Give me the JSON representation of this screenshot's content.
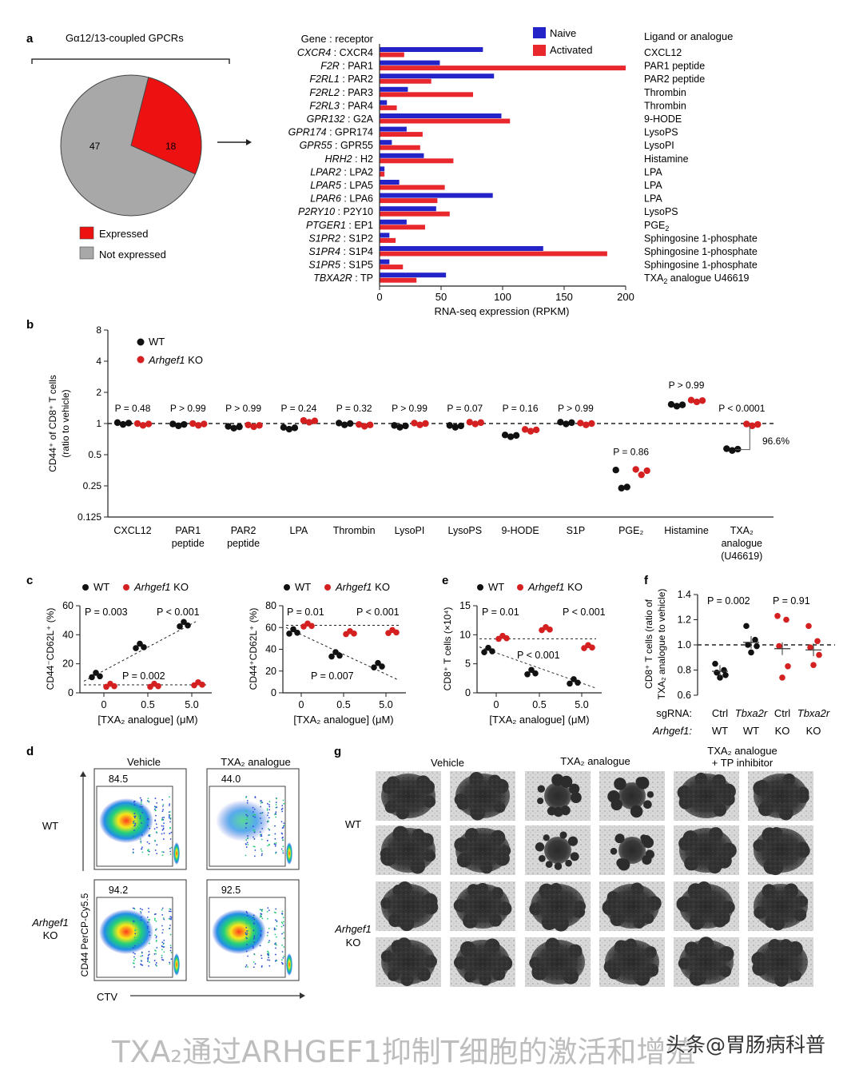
{
  "panel_a": {
    "label": "a",
    "pie_title": "Gα12/13-coupled GPCRs",
    "pie": {
      "not_expressed": 47,
      "expressed": 18
    },
    "legend": {
      "expressed": "Expressed",
      "not_expressed": "Not expressed"
    },
    "bar_header": "Gene : receptor",
    "ligand_header": "Ligand or analogue",
    "legend_naive": "Naive",
    "legend_activated": "Activated",
    "xlabel": "RNA-seq expression (RPKM)",
    "xticks": [
      "0",
      "50",
      "100",
      "150",
      "200"
    ],
    "colors": {
      "naive": "#2323c8",
      "activated": "#e8282d",
      "pie_expressed": "#ee1111",
      "pie_not": "#a8a8a8"
    }
  },
  "chart_data": [
    {
      "type": "bar",
      "title": "Gene : receptor expression",
      "xlabel": "RNA-seq expression (RPKM)",
      "xlim": [
        0,
        200
      ],
      "genes": [
        {
          "gene": "CXCR4",
          "receptor": "CXCR4",
          "ligand": "CXCL12",
          "naive": 84,
          "activated": 20
        },
        {
          "gene": "F2R",
          "receptor": "PAR1",
          "ligand": "PAR1 peptide",
          "naive": 49,
          "activated": 200
        },
        {
          "gene": "F2RL1",
          "receptor": "PAR2",
          "ligand": "PAR2 peptide",
          "naive": 93,
          "activated": 42
        },
        {
          "gene": "F2RL2",
          "receptor": "PAR3",
          "ligand": "Thrombin",
          "naive": 23,
          "activated": 76
        },
        {
          "gene": "F2RL3",
          "receptor": "PAR4",
          "ligand": "Thrombin",
          "naive": 6,
          "activated": 14
        },
        {
          "gene": "GPR132",
          "receptor": "G2A",
          "ligand": "9-HODE",
          "naive": 99,
          "activated": 106
        },
        {
          "gene": "GPR174",
          "receptor": "GPR174",
          "ligand": "LysoPS",
          "naive": 22,
          "activated": 35
        },
        {
          "gene": "GPR55",
          "receptor": "GPR55",
          "ligand": "LysoPI",
          "naive": 10,
          "activated": 33
        },
        {
          "gene": "HRH2",
          "receptor": "H2",
          "ligand": "Histamine",
          "naive": 36,
          "activated": 60
        },
        {
          "gene": "LPAR2",
          "receptor": "LPA2",
          "ligand": "LPA",
          "naive": 4,
          "activated": 4
        },
        {
          "gene": "LPAR5",
          "receptor": "LPA5",
          "ligand": "LPA",
          "naive": 16,
          "activated": 53
        },
        {
          "gene": "LPAR6",
          "receptor": "LPA6",
          "ligand": "LPA",
          "naive": 92,
          "activated": 47
        },
        {
          "gene": "P2RY10",
          "receptor": "P2Y10",
          "ligand": "LysoPS",
          "naive": 46,
          "activated": 57
        },
        {
          "gene": "PTGER1",
          "receptor": "EP1",
          "ligand": "PGE2",
          "naive": 22,
          "activated": 37
        },
        {
          "gene": "S1PR2",
          "receptor": "S1P2",
          "ligand": "Sphingosine 1-phosphate",
          "naive": 8,
          "activated": 13
        },
        {
          "gene": "S1PR4",
          "receptor": "S1P4",
          "ligand": "Sphingosine 1-phosphate",
          "naive": 133,
          "activated": 185
        },
        {
          "gene": "S1PR5",
          "receptor": "S1P5",
          "ligand": "Sphingosine 1-phosphate",
          "naive": 8,
          "activated": 19
        },
        {
          "gene": "TBXA2R",
          "receptor": "TP",
          "ligand": "TXA2 analogue U46619",
          "naive": 54,
          "activated": 30
        }
      ]
    },
    {
      "type": "scatter",
      "title": "CD44+ of CD8+ T cells",
      "ylabel": "CD44⁺ of CD8⁺ T cells (ratio to vehicle)",
      "yticks": [
        "8",
        "4",
        "2",
        "1",
        "0.5",
        "0.25",
        "0.125"
      ],
      "categories": [
        {
          "name": "CXCL12",
          "p": "P = 0.48",
          "wt": 1.0,
          "ko": 0.98
        },
        {
          "name": "PAR1 peptide",
          "p": "P > 0.99",
          "wt": 0.97,
          "ko": 0.98
        },
        {
          "name": "PAR2 peptide",
          "p": "P > 0.99",
          "wt": 0.92,
          "ko": 0.95
        },
        {
          "name": "LPA",
          "p": "P = 0.24",
          "wt": 0.9,
          "ko": 1.05
        },
        {
          "name": "Thrombin",
          "p": "P = 0.32",
          "wt": 0.99,
          "ko": 0.96
        },
        {
          "name": "LysoPI",
          "p": "P > 0.99",
          "wt": 0.94,
          "ko": 0.99
        },
        {
          "name": "LysoPS",
          "p": "P = 0.07",
          "wt": 0.94,
          "ko": 1.01
        },
        {
          "name": "9-HODE",
          "p": "P = 0.16",
          "wt": 0.76,
          "ko": 0.86
        },
        {
          "name": "S1P",
          "p": "P > 0.99",
          "wt": 1.01,
          "ko": 0.99
        },
        {
          "name": "PGE2",
          "p": "P = 0.86",
          "wt": 0.27,
          "ko": 0.34
        },
        {
          "name": "Histamine",
          "p": "P > 0.99",
          "wt": 1.5,
          "ko": 1.65
        },
        {
          "name": "TXA2 analogue (U46619)",
          "p": "P < 0.0001",
          "wt": 0.56,
          "ko": 0.97
        }
      ],
      "annotation": "96.6%"
    }
  ],
  "panel_b": {
    "label": "b",
    "legend_wt": "WT",
    "legend_ko": "Arhgef1",
    "legend_ko_suffix": " KO",
    "ylabel": "CD44⁺ of CD8⁺ T cells",
    "ylabel2": "(ratio to vehicle)",
    "annotation": "96.6%",
    "xlabels": [
      [
        "CXCL12"
      ],
      [
        "PAR1",
        "peptide"
      ],
      [
        "PAR2",
        "peptide"
      ],
      [
        "LPA"
      ],
      [
        "Thrombin"
      ],
      [
        "LysoPI"
      ],
      [
        "LysoPS"
      ],
      [
        "9-HODE"
      ],
      [
        "S1P"
      ],
      [
        "PGE₂"
      ],
      [
        "Histamine"
      ],
      [
        "TXA₂",
        "analogue",
        "(U46619)"
      ]
    ]
  },
  "panel_c": {
    "label": "c",
    "legend_wt": "WT",
    "legend_ko": "Arhgef1",
    "legend_ko_suffix": " KO",
    "left": {
      "ylabel": "CD44⁻CD62L⁺ (%)",
      "yticks": [
        "60",
        "40",
        "20",
        "0"
      ],
      "p1": "P = 0.003",
      "p2": "P < 0.001",
      "p3": "P = 0.002",
      "wt": [
        12,
        32,
        47
      ],
      "ko": [
        5,
        5,
        6
      ]
    },
    "right": {
      "ylabel": "CD44⁺CD62L⁺ (%)",
      "yticks": [
        "80",
        "60",
        "40",
        "20",
        "0"
      ],
      "p1": "P = 0.01",
      "p2": "P < 0.001",
      "p3": "P = 0.007",
      "wt": [
        56,
        35,
        25
      ],
      "ko": [
        62,
        55,
        56
      ]
    },
    "xticks": [
      "0",
      "0.5",
      "5.0"
    ],
    "xlabel": "[TXA₂ analogue] (μM)"
  },
  "panel_e": {
    "label": "e",
    "legend_wt": "WT",
    "legend_ko": "Arhgef1",
    "legend_ko_suffix": " KO",
    "ylabel": "CD8⁺ T cells (×10⁴)",
    "yticks": [
      "15",
      "10",
      "5",
      "0"
    ],
    "p1": "P = 0.01",
    "p2": "P < 0.001",
    "p3": "P < 0.001",
    "wt": [
      7.3,
      3.5,
      1.9
    ],
    "ko": [
      9.5,
      11.0,
      7.9
    ],
    "xticks": [
      "0",
      "0.5",
      "5.0"
    ],
    "xlabel": "[TXA₂ analogue] (μM)"
  },
  "panel_f": {
    "label": "f",
    "ylabel": "CD8⁺ T cells (ratio of",
    "ylabel2": "TXA₂ analogue to vehicle)",
    "yticks": [
      "1.4",
      "1.2",
      "1.0",
      "0.8",
      "0.6"
    ],
    "p1": "P = 0.002",
    "p2": "P = 0.91",
    "row1_label": "sgRNA:",
    "row2_label": "Arhgef1:",
    "groups": [
      {
        "sgrna": "Ctrl",
        "arhgef1": "WT",
        "mean": 0.79
      },
      {
        "sgrna": "Tbxa2r",
        "arhgef1": "WT",
        "mean": 1.02
      },
      {
        "sgrna": "Ctrl",
        "arhgef1": "KO",
        "mean": 0.97
      },
      {
        "sgrna": "Tbxa2r",
        "arhgef1": "KO",
        "mean": 0.96
      }
    ]
  },
  "panel_d": {
    "label": "d",
    "col1": "Vehicle",
    "col2": "TXA₂ analogue",
    "row1": "WT",
    "row2a": "Arhgef1",
    "row2b": "KO",
    "gates": [
      "84.5",
      "44.0",
      "94.2",
      "92.5"
    ],
    "ylabel": "CD44 PerCP-Cy5.5",
    "xlabel": "CTV"
  },
  "panel_g": {
    "label": "g",
    "col1": "Vehicle",
    "col2": "TXA₂ analogue",
    "col3a": "TXA₂ analogue",
    "col3b": "+ TP inhibitor",
    "row1": "WT",
    "row2a": "Arhgef1",
    "row2b": "KO"
  },
  "caption": "TXA₂通过ARHGEF1抑制T细胞的激活和增殖",
  "watermark": "头条@胃肠病科普"
}
